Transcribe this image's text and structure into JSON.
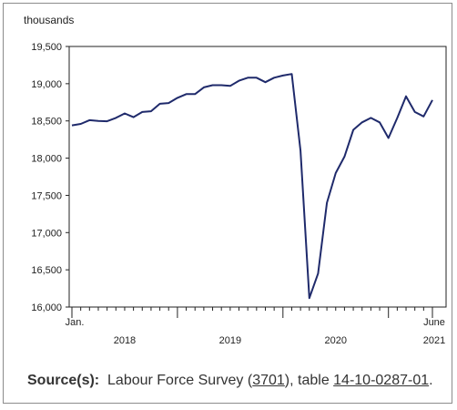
{
  "chart_data": {
    "type": "line",
    "title": "",
    "unit_label": "thousands",
    "xlabel": "",
    "ylabel": "",
    "ylim": [
      16000,
      19500
    ],
    "y_ticks": [
      16000,
      16500,
      17000,
      17500,
      18000,
      18500,
      19000,
      19500
    ],
    "y_tick_labels": [
      "16,000",
      "16,500",
      "17,000",
      "17,500",
      "18,000",
      "18,500",
      "19,000",
      "19,500"
    ],
    "x_start_label": "Jan.",
    "x_end_label": "June",
    "year_labels": [
      "2018",
      "2019",
      "2020",
      "2021"
    ],
    "grid": false,
    "line_color": "#1f2a6b",
    "series": [
      {
        "values": [
          18440,
          18460,
          18510,
          18500,
          18495,
          18540,
          18600,
          18550,
          18620,
          18630,
          18730,
          18740,
          18810,
          18860,
          18860,
          18950,
          18980,
          18980,
          18970,
          19040,
          19080,
          19080,
          19020,
          19080,
          19110,
          19130,
          18100,
          16120,
          16450,
          17400,
          17800,
          18020,
          18380,
          18480,
          18540,
          18480,
          18270,
          18540,
          18830,
          18620,
          18560,
          18780
        ]
      }
    ]
  },
  "source": {
    "label": "Source(s):",
    "text_before": "Labour Force Survey (",
    "survey_link": "3701",
    "text_mid": "), table ",
    "table_link": "14-10-0287-01",
    "text_end": "."
  }
}
